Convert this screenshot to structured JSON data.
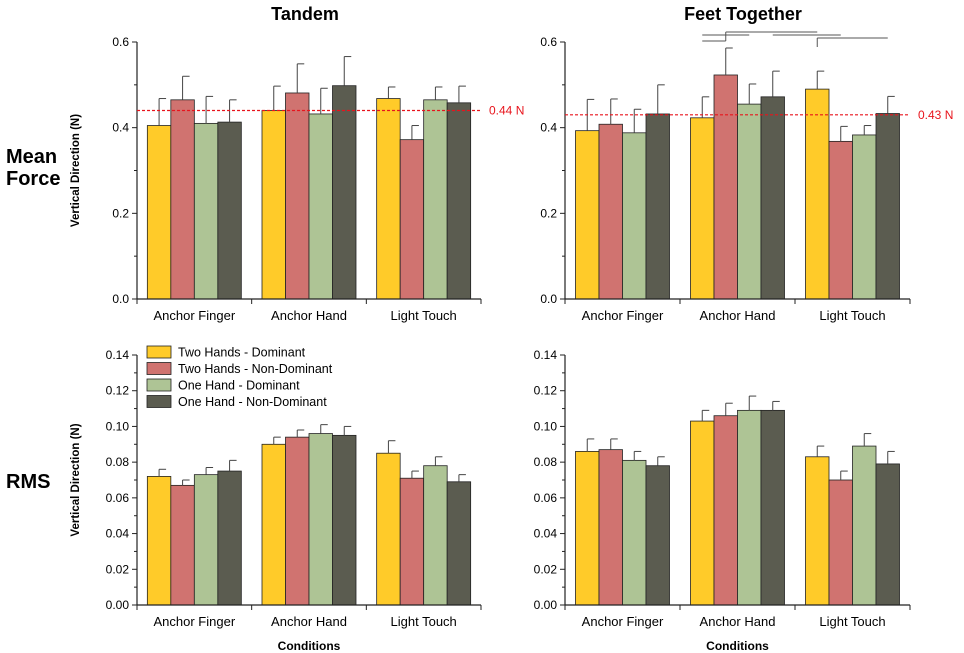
{
  "figure": {
    "column_titles": [
      "Tandem",
      "Feet Together"
    ],
    "row_labels": [
      "Mean\nForce",
      "RMS"
    ]
  },
  "legend": {
    "entries": [
      {
        "label": "Two Hands - Dominant",
        "color": "#FFCB29"
      },
      {
        "label": "Two Hands - Non-Dominant",
        "color": "#D07370"
      },
      {
        "label": "One Hand - Dominant",
        "color": "#AEC495"
      },
      {
        "label": "One Hand - Non-Dominant",
        "color": "#5B5C50"
      }
    ]
  },
  "chart_data": [
    {
      "type": "bar",
      "panel": "Tandem - Mean Force",
      "title": "Tandem",
      "xlabel": "",
      "ylabel": "Vertical Direction (N)",
      "ylim": [
        0,
        0.6
      ],
      "yticks": [
        "0.0",
        "0.2",
        "0.4",
        "0.6"
      ],
      "categories": [
        "Anchor Finger",
        "Anchor Hand",
        "Light Touch"
      ],
      "series": [
        {
          "name": "Two Hands - Dominant",
          "values": [
            0.405,
            0.44,
            0.468
          ],
          "errors": [
            0.063,
            0.057,
            0.027
          ]
        },
        {
          "name": "Two Hands - Non-Dominant",
          "values": [
            0.465,
            0.481,
            0.372
          ],
          "errors": [
            0.055,
            0.068,
            0.033
          ]
        },
        {
          "name": "One Hand - Dominant",
          "values": [
            0.41,
            0.432,
            0.465
          ],
          "errors": [
            0.063,
            0.06,
            0.03
          ]
        },
        {
          "name": "One Hand - Non-Dominant",
          "values": [
            0.413,
            0.498,
            0.458
          ],
          "errors": [
            0.052,
            0.068,
            0.039
          ]
        }
      ],
      "reference_line": {
        "value": 0.44,
        "label": "0.44 N"
      }
    },
    {
      "type": "bar",
      "panel": "Feet Together - Mean Force",
      "title": "Feet Together",
      "xlabel": "",
      "ylabel": "",
      "ylim": [
        0,
        0.6
      ],
      "yticks": [
        "0.0",
        "0.2",
        "0.4",
        "0.6"
      ],
      "categories": [
        "Anchor Finger",
        "Anchor Hand",
        "Light Touch"
      ],
      "series": [
        {
          "name": "Two Hands - Dominant",
          "values": [
            0.393,
            0.423,
            0.49
          ],
          "errors": [
            0.073,
            0.049,
            0.042
          ]
        },
        {
          "name": "Two Hands - Non-Dominant",
          "values": [
            0.408,
            0.523,
            0.368
          ],
          "errors": [
            0.059,
            0.063,
            0.035
          ]
        },
        {
          "name": "One Hand - Dominant",
          "values": [
            0.388,
            0.455,
            0.383
          ],
          "errors": [
            0.055,
            0.047,
            0.022
          ]
        },
        {
          "name": "One Hand - Non-Dominant",
          "values": [
            0.432,
            0.472,
            0.433
          ],
          "errors": [
            0.068,
            0.06,
            0.04
          ]
        }
      ],
      "reference_line": {
        "value": 0.43,
        "label": "0.43 N"
      },
      "significance_brackets": [
        {
          "from": [
            1,
            0
          ],
          "to": [
            1,
            1
          ]
        },
        {
          "from": [
            1,
            0
          ],
          "to": [
            1,
            2
          ]
        },
        {
          "from": [
            1,
            1
          ],
          "to": [
            2,
            0
          ]
        },
        {
          "from": [
            1,
            3
          ],
          "to": [
            2,
            1
          ]
        },
        {
          "from": [
            2,
            0
          ],
          "to": [
            2,
            3
          ]
        }
      ]
    },
    {
      "type": "bar",
      "panel": "Tandem - RMS",
      "title": "",
      "xlabel": "Conditions",
      "ylabel": "Vertical Direction (N)",
      "ylim": [
        0,
        0.14
      ],
      "yticks": [
        "0.00",
        "0.02",
        "0.04",
        "0.06",
        "0.08",
        "0.10",
        "0.12",
        "0.14"
      ],
      "categories": [
        "Anchor Finger",
        "Anchor Hand",
        "Light Touch"
      ],
      "series": [
        {
          "name": "Two Hands - Dominant",
          "values": [
            0.072,
            0.09,
            0.085
          ],
          "errors": [
            0.004,
            0.004,
            0.007
          ]
        },
        {
          "name": "Two Hands - Non-Dominant",
          "values": [
            0.067,
            0.094,
            0.071
          ],
          "errors": [
            0.003,
            0.004,
            0.004
          ]
        },
        {
          "name": "One Hand - Dominant",
          "values": [
            0.073,
            0.096,
            0.078
          ],
          "errors": [
            0.004,
            0.005,
            0.005
          ]
        },
        {
          "name": "One Hand - Non-Dominant",
          "values": [
            0.075,
            0.095,
            0.069
          ],
          "errors": [
            0.006,
            0.005,
            0.004
          ]
        }
      ]
    },
    {
      "type": "bar",
      "panel": "Feet Together - RMS",
      "title": "",
      "xlabel": "Conditions",
      "ylabel": "",
      "ylim": [
        0,
        0.14
      ],
      "yticks": [
        "0.00",
        "0.02",
        "0.04",
        "0.06",
        "0.08",
        "0.10",
        "0.12",
        "0.14"
      ],
      "categories": [
        "Anchor Finger",
        "Anchor Hand",
        "Light Touch"
      ],
      "series": [
        {
          "name": "Two Hands - Dominant",
          "values": [
            0.086,
            0.103,
            0.083
          ],
          "errors": [
            0.007,
            0.006,
            0.006
          ]
        },
        {
          "name": "Two Hands - Non-Dominant",
          "values": [
            0.087,
            0.106,
            0.07
          ],
          "errors": [
            0.006,
            0.007,
            0.005
          ]
        },
        {
          "name": "One Hand - Dominant",
          "values": [
            0.081,
            0.109,
            0.089
          ],
          "errors": [
            0.005,
            0.008,
            0.007
          ]
        },
        {
          "name": "One Hand - Non-Dominant",
          "values": [
            0.078,
            0.109,
            0.079
          ],
          "errors": [
            0.005,
            0.005,
            0.007
          ]
        }
      ]
    }
  ]
}
